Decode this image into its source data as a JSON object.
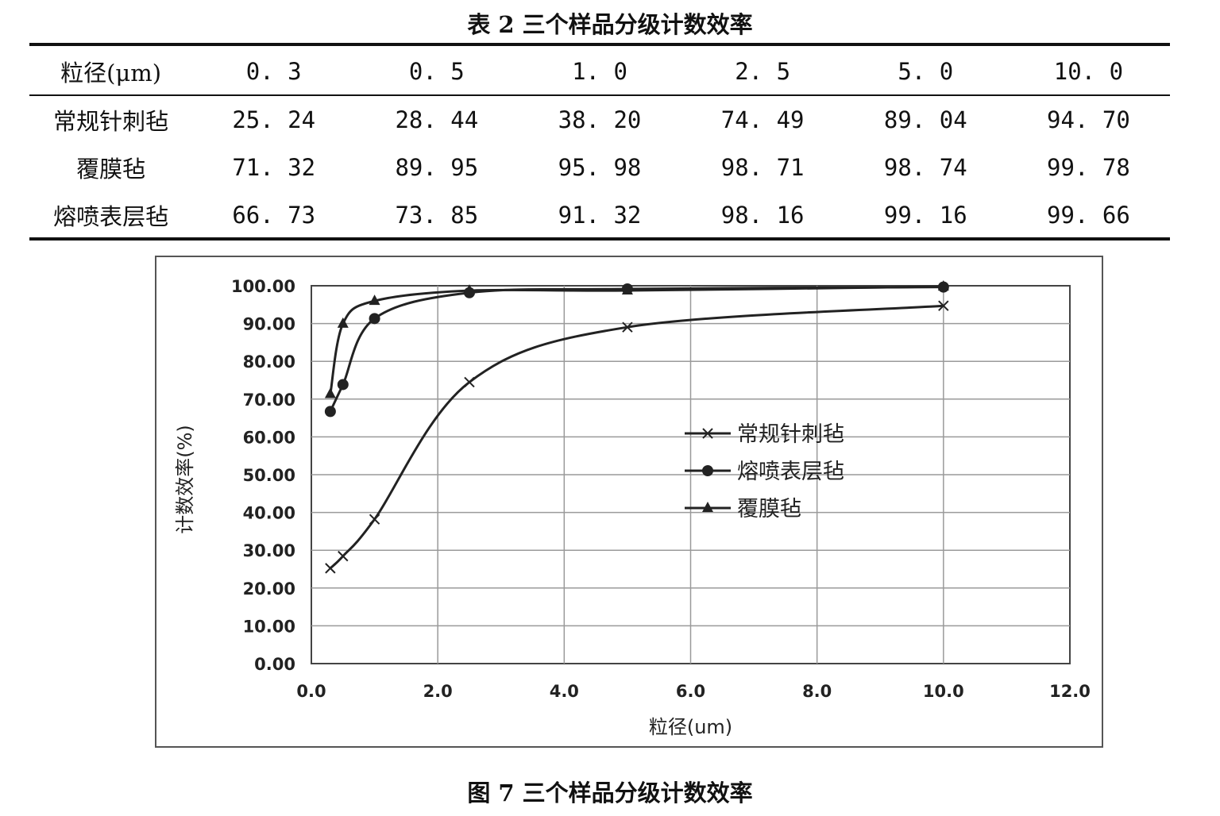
{
  "table": {
    "caption": "表 2 三个样品分级计数效率",
    "header": [
      "粒径(μm)",
      "0. 3",
      "0. 5",
      "1. 0",
      "2. 5",
      "5. 0",
      "10. 0"
    ],
    "rows": [
      [
        "常规针刺毡",
        "25. 24",
        "28. 44",
        "38. 20",
        "74. 49",
        "89. 04",
        "94. 70"
      ],
      [
        "覆膜毡",
        "71. 32",
        "89. 95",
        "95. 98",
        "98. 71",
        "98. 74",
        "99. 78"
      ],
      [
        "熔喷表层毡",
        "66. 73",
        "73. 85",
        "91. 32",
        "98. 16",
        "99. 16",
        "99. 66"
      ]
    ]
  },
  "figure": {
    "caption": "图 7 三个样品分级计数效率"
  },
  "chart_data": {
    "type": "scatter",
    "xlabel": "粒径(um)",
    "ylabel": "计数效率(%)",
    "xlim": [
      0,
      12
    ],
    "ylim": [
      0,
      100
    ],
    "xticks": [
      "0.0",
      "2.0",
      "4.0",
      "6.0",
      "8.0",
      "10.0",
      "12.0"
    ],
    "yticks": [
      "0.00",
      "10.00",
      "20.00",
      "30.00",
      "40.00",
      "50.00",
      "60.00",
      "70.00",
      "80.00",
      "90.00",
      "100.00"
    ],
    "grid": true,
    "smooth_lines": true,
    "legend_position": "right-middle",
    "x": [
      0.3,
      0.5,
      1.0,
      2.5,
      5.0,
      10.0
    ],
    "series": [
      {
        "name": "常规针刺毡",
        "marker": "x",
        "values": [
          25.24,
          28.44,
          38.2,
          74.49,
          89.04,
          94.7
        ]
      },
      {
        "name": "熔喷表层毡",
        "marker": "circle",
        "values": [
          66.73,
          73.85,
          91.32,
          98.16,
          99.16,
          99.66
        ]
      },
      {
        "name": "覆膜毡",
        "marker": "triangle",
        "values": [
          71.32,
          89.95,
          95.98,
          98.71,
          98.74,
          99.78
        ]
      }
    ],
    "colors": {
      "line": "#222222",
      "grid": "#9a9a9a",
      "frame": "#555555"
    }
  }
}
